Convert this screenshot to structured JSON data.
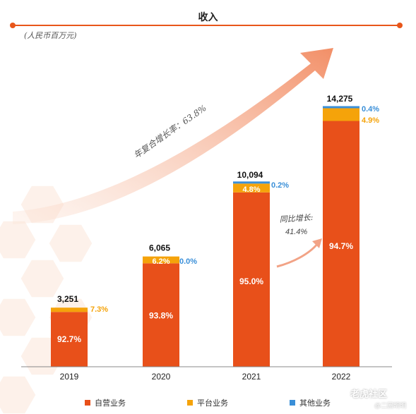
{
  "header": {
    "title": "收入",
    "unit": "(人民币百万元)"
  },
  "chart_data": {
    "type": "bar",
    "stacked": true,
    "categories": [
      "2019",
      "2020",
      "2021",
      "2022"
    ],
    "totals": [
      "3,251",
      "6,065",
      "10,094",
      "14,275"
    ],
    "total_values": [
      3251,
      6065,
      10094,
      14275
    ],
    "series": [
      {
        "name": "自营业务",
        "color": "#e8501a",
        "share": [
          92.7,
          93.8,
          95.0,
          94.7
        ],
        "labels": [
          "92.7%",
          "93.8%",
          "95.0%",
          "94.7%"
        ]
      },
      {
        "name": "平台业务",
        "color": "#f5a30a",
        "share": [
          7.3,
          6.2,
          4.8,
          4.9
        ],
        "labels": [
          "7.3%",
          "6.2%",
          "4.8%",
          "4.9%"
        ]
      },
      {
        "name": "其他业务",
        "color": "#3a8fd8",
        "share": [
          0.0,
          0.0,
          0.2,
          0.4
        ],
        "labels": [
          "",
          "0.0%",
          "0.2%",
          "0.4%"
        ]
      }
    ],
    "annotations": {
      "cagr": "年复合增长率：63.8%",
      "yoy_label": "同比增长:",
      "yoy_value": "41.4%"
    },
    "legend_position": "bottom",
    "ylim": [
      0,
      16000
    ]
  },
  "watermark": {
    "brand": "老虎社区",
    "user": "@二回明明"
  }
}
